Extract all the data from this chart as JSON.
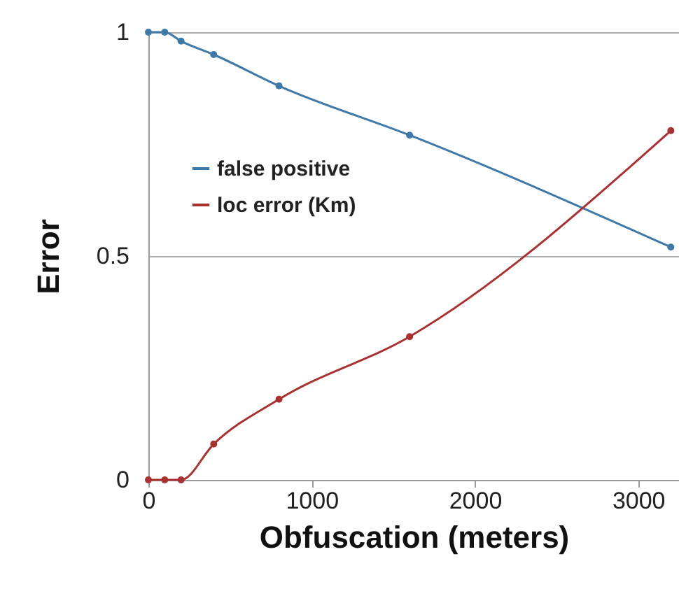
{
  "chart_data": {
    "type": "line",
    "xlabel": "Obfuscation (meters)",
    "ylabel": "Error",
    "x": [
      0,
      100,
      200,
      400,
      800,
      1600,
      3200
    ],
    "xlim": [
      0,
      3250
    ],
    "xticks": [
      0,
      1000,
      2000,
      3000
    ],
    "ylim": [
      0,
      1
    ],
    "yticks": [
      0,
      0.5,
      1
    ],
    "grid": "y",
    "legend": "left",
    "marker": "circle",
    "line_style": "solid",
    "series": [
      {
        "name": "false positive",
        "color": "#3f79a8",
        "values": [
          1,
          1,
          0.98,
          0.95,
          0.88,
          0.77,
          0.52
        ]
      },
      {
        "name": "loc error (Km)",
        "color": "#a83232",
        "values": [
          0,
          0,
          0,
          0.08,
          0.18,
          0.32,
          0.78
        ]
      }
    ]
  }
}
